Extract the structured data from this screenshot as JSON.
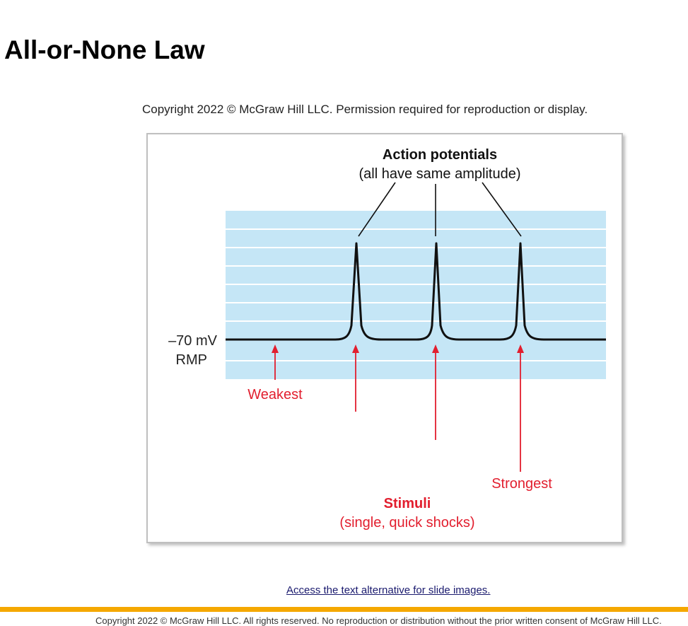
{
  "slide": {
    "title": "All-or-None Law",
    "figure_copyright": "Copyright 2022 © McGraw Hill LLC. Permission required for reproduction or display.",
    "alt_text_link": "Access the text alternative for slide images.",
    "footer_copyright": "Copyright 2022 © McGraw Hill LLC. All rights reserved. No reproduction or distribution without the prior written consent of McGraw Hill LLC."
  },
  "diagram": {
    "heading_bold": "Action potentials",
    "heading_sub": "(all have same amplitude)",
    "rmp_value": "–70 mV",
    "rmp_label": "RMP",
    "weakest_label": "Weakest",
    "strongest_label": "Strongest",
    "stimuli_bold": "Stimuli",
    "stimuli_sub": "(single, quick shocks)",
    "colors": {
      "background_band": "#c5e6f6",
      "grid_line": "#ffffff",
      "trace": "#111111",
      "stimulus_arrow": "#e21e2e",
      "pointer_line": "#111111",
      "accent_bar": "#f5a800"
    }
  }
}
